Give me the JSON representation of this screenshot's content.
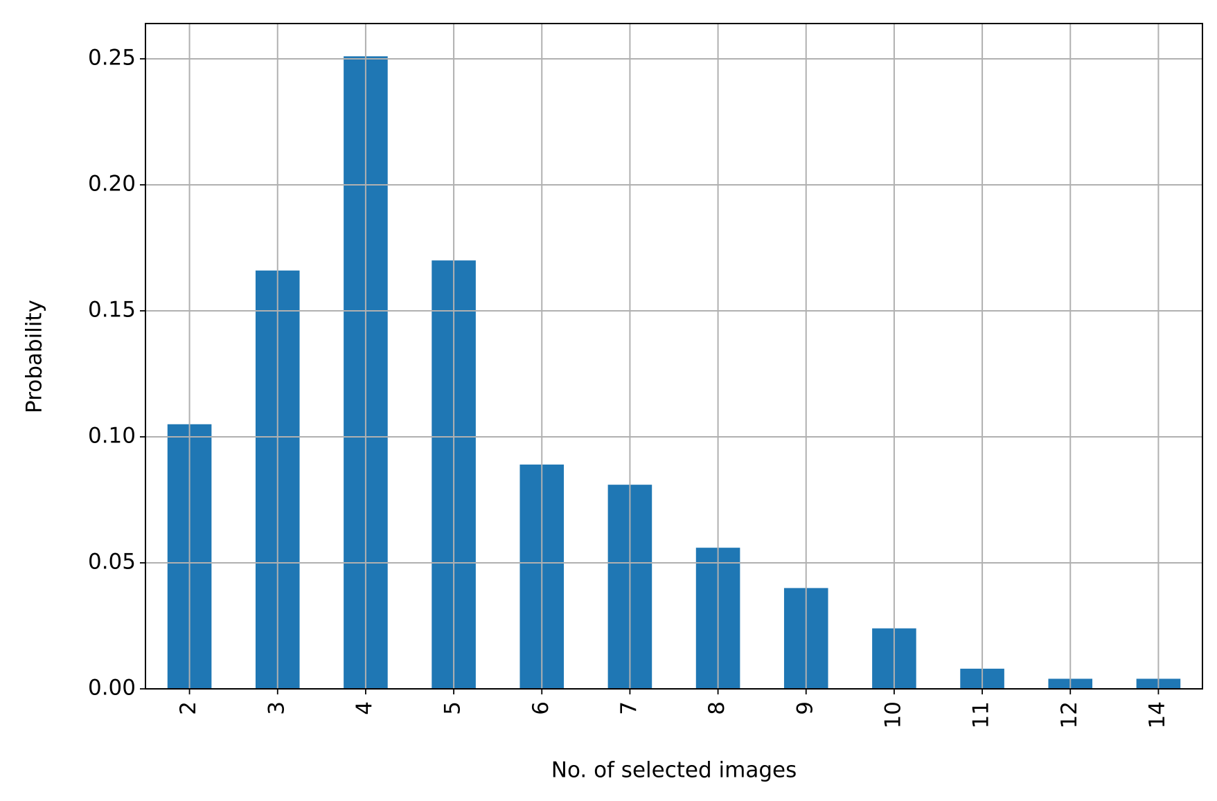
{
  "chart_data": {
    "type": "bar",
    "x_label": "No. of selected images",
    "y_label": "Probability",
    "categories": [
      "2",
      "3",
      "4",
      "5",
      "6",
      "7",
      "8",
      "9",
      "10",
      "11",
      "12",
      "14"
    ],
    "values": [
      0.105,
      0.166,
      0.251,
      0.17,
      0.089,
      0.081,
      0.056,
      0.04,
      0.024,
      0.008,
      0.004,
      0.004
    ],
    "color": "#1f77b4",
    "ylim": [
      0,
      0.264
    ],
    "yticks": [
      {
        "value": 0,
        "label": "0.00"
      },
      {
        "value": 0.05,
        "label": "0.05"
      },
      {
        "value": 0.1,
        "label": "0.10"
      },
      {
        "value": 0.15,
        "label": "0.15"
      },
      {
        "value": 0.2,
        "label": "0.20"
      },
      {
        "value": 0.25,
        "label": "0.25"
      }
    ],
    "grid": true
  }
}
